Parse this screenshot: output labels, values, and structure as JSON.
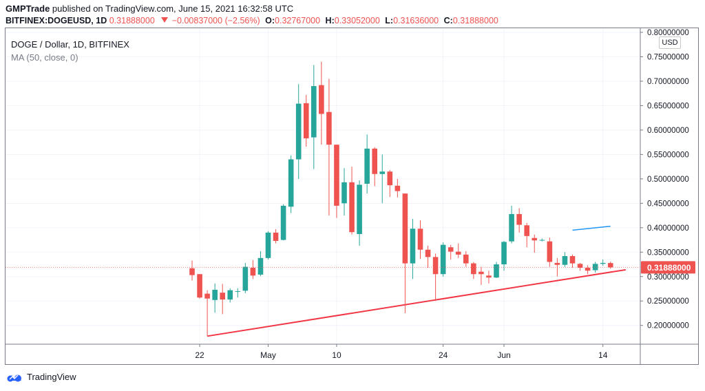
{
  "header": {
    "publisher": "GMPTrade",
    "published_text": "published on TradingView.com, June 15, 2021 16:32:58 UTC"
  },
  "ohlc": {
    "symbol": "BITFINEX:DOGEUSD, 1D",
    "last": "0.31888000",
    "change": "−0.00837000 (−2.56%)",
    "open_key": "O:",
    "open": "0.32767000",
    "high_key": "H:",
    "high": "0.33052000",
    "low_key": "L:",
    "low": "0.31636000",
    "close_key": "C:",
    "close": "0.31888000"
  },
  "legend": {
    "title": "DOGE / Dollar, 1D, BITFINEX",
    "indicator": "MA (50, close, 0)"
  },
  "currency_label": "USD",
  "footer": {
    "brand": "TradingView"
  },
  "colors": {
    "up": "#26a69a",
    "down": "#ef5350",
    "ma": "#2196f3",
    "trendline": "#f23645",
    "grid": "#f0f3fa"
  },
  "chart_data": {
    "type": "candlestick",
    "title": "DOGE / Dollar, 1D, BITFINEX",
    "ylim": [
      0.17,
      0.8
    ],
    "y_ticks": [
      "0.80000000",
      "0.75000000",
      "0.70000000",
      "0.65000000",
      "0.60000000",
      "0.55000000",
      "0.50000000",
      "0.45000000",
      "0.40000000",
      "0.35000000",
      "0.30000000",
      "0.25000000",
      "0.20000000"
    ],
    "x_ticks": [
      {
        "label": "22",
        "date": "2021-04-22"
      },
      {
        "label": "May",
        "date": "2021-05-01"
      },
      {
        "label": "10",
        "date": "2021-05-10"
      },
      {
        "label": "24",
        "date": "2021-05-24"
      },
      {
        "label": "Jun",
        "date": "2021-06-01"
      },
      {
        "label": "14",
        "date": "2021-06-14"
      }
    ],
    "last_price_label": "0.31888000",
    "candles": [
      {
        "date": "2021-04-21",
        "o": 0.317,
        "h": 0.333,
        "l": 0.292,
        "c": 0.303
      },
      {
        "date": "2021-04-22",
        "o": 0.305,
        "h": 0.305,
        "l": 0.255,
        "c": 0.257
      },
      {
        "date": "2021-04-23",
        "o": 0.265,
        "h": 0.272,
        "l": 0.178,
        "c": 0.255
      },
      {
        "date": "2021-04-24",
        "o": 0.252,
        "h": 0.286,
        "l": 0.226,
        "c": 0.273
      },
      {
        "date": "2021-04-25",
        "o": 0.267,
        "h": 0.285,
        "l": 0.223,
        "c": 0.253
      },
      {
        "date": "2021-04-26",
        "o": 0.253,
        "h": 0.276,
        "l": 0.247,
        "c": 0.272
      },
      {
        "date": "2021-04-27",
        "o": 0.27,
        "h": 0.276,
        "l": 0.257,
        "c": 0.27
      },
      {
        "date": "2021-04-28",
        "o": 0.271,
        "h": 0.328,
        "l": 0.266,
        "c": 0.32
      },
      {
        "date": "2021-04-29",
        "o": 0.318,
        "h": 0.334,
        "l": 0.295,
        "c": 0.302
      },
      {
        "date": "2021-04-30",
        "o": 0.304,
        "h": 0.352,
        "l": 0.301,
        "c": 0.338
      },
      {
        "date": "2021-05-01",
        "o": 0.338,
        "h": 0.393,
        "l": 0.335,
        "c": 0.39
      },
      {
        "date": "2021-05-02",
        "o": 0.39,
        "h": 0.397,
        "l": 0.368,
        "c": 0.373
      },
      {
        "date": "2021-05-03",
        "o": 0.375,
        "h": 0.448,
        "l": 0.374,
        "c": 0.445
      },
      {
        "date": "2021-05-04",
        "o": 0.443,
        "h": 0.548,
        "l": 0.43,
        "c": 0.54
      },
      {
        "date": "2021-05-05",
        "o": 0.54,
        "h": 0.694,
        "l": 0.5,
        "c": 0.654
      },
      {
        "date": "2021-05-06",
        "o": 0.655,
        "h": 0.672,
        "l": 0.566,
        "c": 0.583
      },
      {
        "date": "2021-05-07",
        "o": 0.585,
        "h": 0.733,
        "l": 0.52,
        "c": 0.69
      },
      {
        "date": "2021-05-08",
        "o": 0.692,
        "h": 0.74,
        "l": 0.57,
        "c": 0.633
      },
      {
        "date": "2021-05-09",
        "o": 0.637,
        "h": 0.705,
        "l": 0.425,
        "c": 0.57
      },
      {
        "date": "2021-05-10",
        "o": 0.57,
        "h": 0.57,
        "l": 0.42,
        "c": 0.445
      },
      {
        "date": "2021-05-11",
        "o": 0.45,
        "h": 0.522,
        "l": 0.425,
        "c": 0.493
      },
      {
        "date": "2021-05-12",
        "o": 0.493,
        "h": 0.525,
        "l": 0.386,
        "c": 0.391
      },
      {
        "date": "2021-05-13",
        "o": 0.387,
        "h": 0.497,
        "l": 0.363,
        "c": 0.488
      },
      {
        "date": "2021-05-14",
        "o": 0.49,
        "h": 0.591,
        "l": 0.47,
        "c": 0.562
      },
      {
        "date": "2021-05-15",
        "o": 0.562,
        "h": 0.565,
        "l": 0.485,
        "c": 0.51
      },
      {
        "date": "2021-05-16",
        "o": 0.51,
        "h": 0.55,
        "l": 0.45,
        "c": 0.515
      },
      {
        "date": "2021-05-17",
        "o": 0.515,
        "h": 0.518,
        "l": 0.463,
        "c": 0.487
      },
      {
        "date": "2021-05-18",
        "o": 0.486,
        "h": 0.5,
        "l": 0.462,
        "c": 0.475
      },
      {
        "date": "2021-05-19",
        "o": 0.47,
        "h": 0.47,
        "l": 0.225,
        "c": 0.327
      },
      {
        "date": "2021-05-20",
        "o": 0.327,
        "h": 0.418,
        "l": 0.295,
        "c": 0.398
      },
      {
        "date": "2021-05-21",
        "o": 0.398,
        "h": 0.415,
        "l": 0.336,
        "c": 0.355
      },
      {
        "date": "2021-05-22",
        "o": 0.355,
        "h": 0.363,
        "l": 0.318,
        "c": 0.34
      },
      {
        "date": "2021-05-23",
        "o": 0.34,
        "h": 0.347,
        "l": 0.25,
        "c": 0.305
      },
      {
        "date": "2021-05-24",
        "o": 0.305,
        "h": 0.37,
        "l": 0.3,
        "c": 0.365
      },
      {
        "date": "2021-05-25",
        "o": 0.36,
        "h": 0.365,
        "l": 0.335,
        "c": 0.351
      },
      {
        "date": "2021-05-26",
        "o": 0.351,
        "h": 0.368,
        "l": 0.338,
        "c": 0.345
      },
      {
        "date": "2021-05-27",
        "o": 0.345,
        "h": 0.352,
        "l": 0.32,
        "c": 0.327
      },
      {
        "date": "2021-05-28",
        "o": 0.327,
        "h": 0.33,
        "l": 0.295,
        "c": 0.305
      },
      {
        "date": "2021-05-29",
        "o": 0.31,
        "h": 0.32,
        "l": 0.283,
        "c": 0.305
      },
      {
        "date": "2021-05-30",
        "o": 0.302,
        "h": 0.312,
        "l": 0.286,
        "c": 0.298
      },
      {
        "date": "2021-05-31",
        "o": 0.298,
        "h": 0.33,
        "l": 0.297,
        "c": 0.325
      },
      {
        "date": "2021-06-01",
        "o": 0.325,
        "h": 0.373,
        "l": 0.312,
        "c": 0.371
      },
      {
        "date": "2021-06-02",
        "o": 0.372,
        "h": 0.445,
        "l": 0.368,
        "c": 0.428
      },
      {
        "date": "2021-06-03",
        "o": 0.428,
        "h": 0.44,
        "l": 0.39,
        "c": 0.406
      },
      {
        "date": "2021-06-04",
        "o": 0.405,
        "h": 0.41,
        "l": 0.36,
        "c": 0.383
      },
      {
        "date": "2021-06-05",
        "o": 0.379,
        "h": 0.386,
        "l": 0.349,
        "c": 0.374
      },
      {
        "date": "2021-06-06",
        "o": 0.374,
        "h": 0.378,
        "l": 0.372,
        "c": 0.375
      },
      {
        "date": "2021-06-07",
        "o": 0.372,
        "h": 0.38,
        "l": 0.32,
        "c": 0.33
      },
      {
        "date": "2021-06-08",
        "o": 0.328,
        "h": 0.338,
        "l": 0.3,
        "c": 0.324
      },
      {
        "date": "2021-06-09",
        "o": 0.324,
        "h": 0.35,
        "l": 0.32,
        "c": 0.342
      },
      {
        "date": "2021-06-10",
        "o": 0.342,
        "h": 0.345,
        "l": 0.318,
        "c": 0.327
      },
      {
        "date": "2021-06-11",
        "o": 0.326,
        "h": 0.328,
        "l": 0.312,
        "c": 0.318
      },
      {
        "date": "2021-06-12",
        "o": 0.318,
        "h": 0.323,
        "l": 0.305,
        "c": 0.312
      },
      {
        "date": "2021-06-13",
        "o": 0.313,
        "h": 0.33,
        "l": 0.308,
        "c": 0.326
      },
      {
        "date": "2021-06-14",
        "o": 0.326,
        "h": 0.335,
        "l": 0.322,
        "c": 0.328
      },
      {
        "date": "2021-06-15",
        "o": 0.32767,
        "h": 0.33052,
        "l": 0.31636,
        "c": 0.31888
      }
    ],
    "ma_series": {
      "name": "MA (50, close, 0)",
      "points": [
        {
          "date": "2021-06-10",
          "value": 0.395
        },
        {
          "date": "2021-06-15",
          "value": 0.403
        }
      ]
    },
    "trendline": {
      "start": {
        "date": "2021-04-23",
        "value": 0.178
      },
      "end": {
        "date": "2021-06-17",
        "value": 0.314
      }
    }
  }
}
